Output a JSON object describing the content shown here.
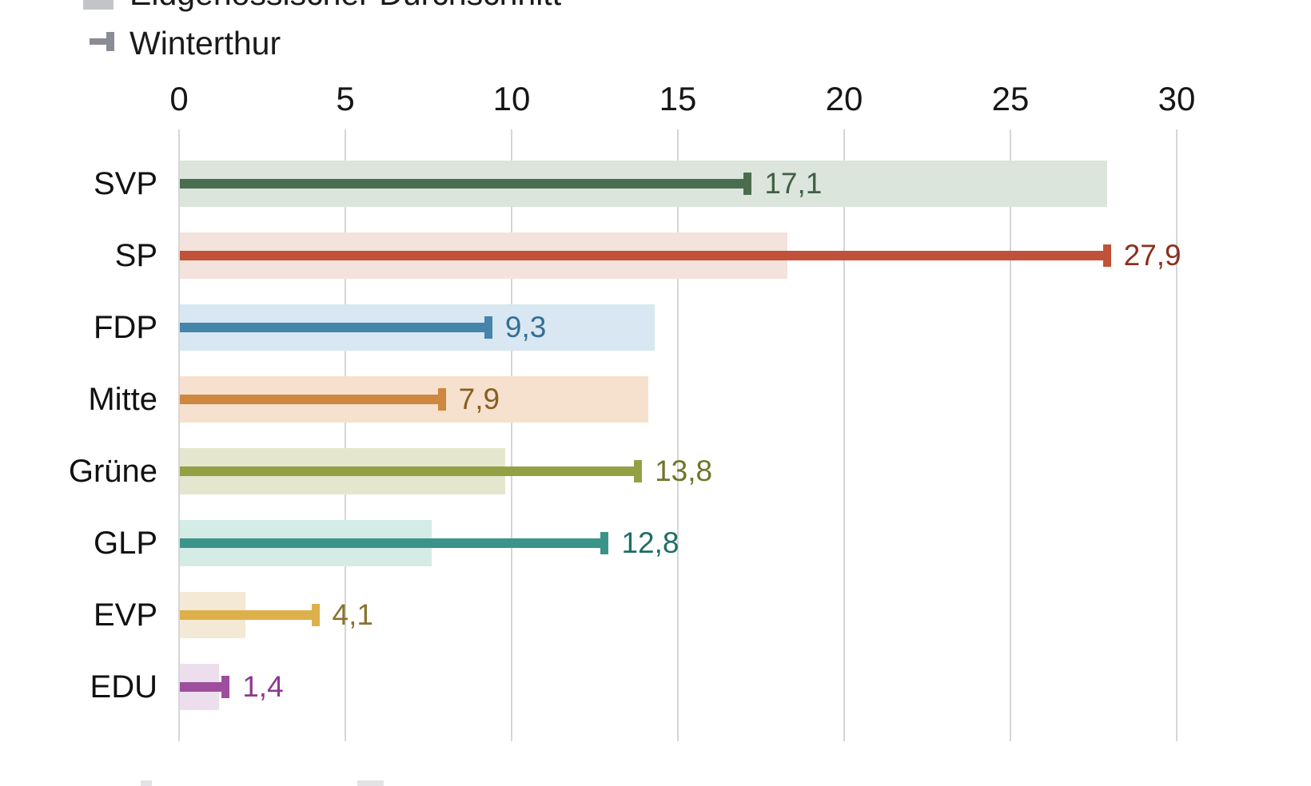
{
  "legend": {
    "items": [
      {
        "id": "average",
        "label": "Eidgenössischer Durchschnitt",
        "swatch": "wide-bar-swatch",
        "color": "#c2c4c8"
      },
      {
        "id": "winterthur",
        "label": "Winterthur",
        "swatch": "thin-bar-cap-swatch",
        "color": "#8b8d94"
      }
    ]
  },
  "axis": {
    "tick_values": [
      0,
      5,
      10,
      15,
      20,
      25,
      30
    ],
    "tick_labels": [
      "0",
      "5",
      "10",
      "15",
      "20",
      "25",
      "30"
    ]
  },
  "chart_data": {
    "type": "bar",
    "orientation": "horizontal",
    "title": "",
    "categories": [
      "SVP",
      "SP",
      "FDP",
      "Mitte",
      "Grüne",
      "GLP",
      "EVP",
      "EDU"
    ],
    "series": [
      {
        "name": "Eidgenössischer Durchschnitt",
        "style": "wide-light-bar",
        "values": [
          27.9,
          18.3,
          14.3,
          14.1,
          9.8,
          7.6,
          2.0,
          1.2
        ]
      },
      {
        "name": "Winterthur",
        "style": "thin-bar-with-end-cap",
        "values": [
          17.1,
          27.9,
          9.3,
          7.9,
          13.8,
          12.8,
          4.1,
          1.4
        ],
        "value_labels": [
          "17,1",
          "27,9",
          "9,3",
          "7,9",
          "13,8",
          "12,8",
          "4,1",
          "1,4"
        ]
      }
    ],
    "xlim": [
      0,
      30
    ],
    "grid": true,
    "legend_position": "top-left",
    "value_decimal_separator": ","
  },
  "rows": [
    {
      "party": "SVP",
      "avg": 27.9,
      "city": 17.1,
      "city_label": "17,1",
      "bar_color": "#4b6d4f",
      "light_color": "#dbe5dc",
      "label_color": "#415f44"
    },
    {
      "party": "SP",
      "avg": 18.3,
      "city": 27.9,
      "city_label": "27,9",
      "bar_color": "#c15138",
      "light_color": "#f4e2dd",
      "label_color": "#8c2f1f"
    },
    {
      "party": "FDP",
      "avg": 14.3,
      "city": 9.3,
      "city_label": "9,3",
      "bar_color": "#4584ab",
      "light_color": "#d8e7f1",
      "label_color": "#336f97"
    },
    {
      "party": "Mitte",
      "avg": 14.1,
      "city": 7.9,
      "city_label": "7,9",
      "bar_color": "#cd8740",
      "light_color": "#f6e1ce",
      "label_color": "#8a5d20"
    },
    {
      "party": "Grüne",
      "avg": 9.8,
      "city": 13.8,
      "city_label": "13,8",
      "bar_color": "#93a144",
      "light_color": "#e4e7cd",
      "label_color": "#717528"
    },
    {
      "party": "GLP",
      "avg": 7.6,
      "city": 12.8,
      "city_label": "12,8",
      "bar_color": "#3b9489",
      "light_color": "#d5ebe6",
      "label_color": "#1f6e66"
    },
    {
      "party": "EVP",
      "avg": 2.0,
      "city": 4.1,
      "city_label": "4,1",
      "bar_color": "#ddb04b",
      "light_color": "#f3e9d4",
      "label_color": "#8a7230"
    },
    {
      "party": "EDU",
      "avg": 1.2,
      "city": 1.4,
      "city_label": "1,4",
      "bar_color": "#9d4f9e",
      "light_color": "#eddeee",
      "label_color": "#8d3a8e"
    }
  ]
}
